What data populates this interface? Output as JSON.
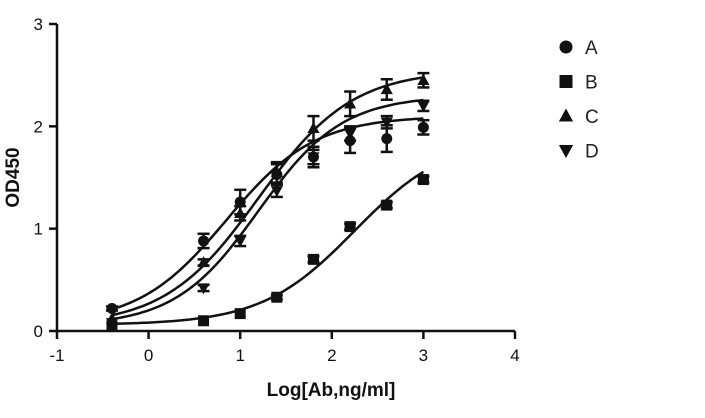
{
  "chart_data": {
    "type": "scatter",
    "xlabel": "Log[Ab,ng/ml]",
    "ylabel": "OD450",
    "xlim": [
      -1,
      4
    ],
    "ylim": [
      0,
      3
    ],
    "x_ticks": [
      "-1",
      "0",
      "1",
      "2",
      "3",
      "4"
    ],
    "y_ticks": [
      "0",
      "1",
      "2",
      "3"
    ],
    "grid": false,
    "legend_position": "right",
    "line_color": "#111111",
    "series": [
      {
        "name": "A",
        "marker": "circle",
        "x": [
          -0.4,
          0.6,
          1.0,
          1.4,
          1.8,
          2.2,
          2.6,
          3.0
        ],
        "y": [
          0.22,
          0.88,
          1.26,
          1.53,
          1.7,
          1.86,
          1.88,
          1.99
        ],
        "err": [
          0.02,
          0.07,
          0.12,
          0.1,
          0.1,
          0.12,
          0.13,
          0.07
        ],
        "fit": {
          "bottom": 0.07,
          "top": 2.1,
          "logEC50": 0.85,
          "hill": 0.9
        }
      },
      {
        "name": "B",
        "marker": "square",
        "x": [
          -0.4,
          0.6,
          1.0,
          1.4,
          1.8,
          2.2,
          2.6,
          3.0
        ],
        "y": [
          0.05,
          0.1,
          0.17,
          0.33,
          0.7,
          1.02,
          1.23,
          1.48
        ],
        "err": [
          0.01,
          0.01,
          0.01,
          0.02,
          0.03,
          0.03,
          0.03,
          0.03
        ],
        "fit": {
          "bottom": 0.06,
          "top": 1.9,
          "logEC50": 2.25,
          "hill": 0.85
        }
      },
      {
        "name": "C",
        "marker": "triangle-up",
        "x": [
          -0.4,
          0.6,
          1.0,
          1.4,
          1.8,
          2.2,
          2.6,
          3.0
        ],
        "y": [
          0.12,
          0.67,
          1.15,
          1.55,
          1.98,
          2.22,
          2.36,
          2.45
        ],
        "err": [
          0.01,
          0.03,
          0.07,
          0.1,
          0.12,
          0.12,
          0.1,
          0.07
        ],
        "fit": {
          "bottom": 0.05,
          "top": 2.55,
          "logEC50": 1.2,
          "hill": 0.85
        }
      },
      {
        "name": "D",
        "marker": "triangle-down",
        "x": [
          -0.4,
          0.6,
          1.0,
          1.4,
          1.8,
          2.2,
          2.6,
          3.0
        ],
        "y": [
          0.08,
          0.42,
          0.88,
          1.37,
          1.7,
          1.93,
          2.04,
          2.2
        ],
        "err": [
          0.01,
          0.03,
          0.05,
          0.06,
          0.07,
          0.07,
          0.06,
          0.05
        ],
        "fit": {
          "bottom": 0.05,
          "top": 2.3,
          "logEC50": 1.2,
          "hill": 0.95
        }
      }
    ]
  }
}
